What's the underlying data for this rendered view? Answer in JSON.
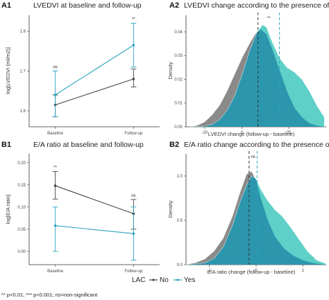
{
  "colors": {
    "no": "#444444",
    "yes": "#2aa3c0",
    "no_fill": "#8a8a88",
    "yes_fill": "#5fd0c8",
    "overlap_fill": "#2c96ad"
  },
  "panels": {
    "A1": {
      "label": "A1",
      "title": "LVEDVI at baseline and follow-up",
      "ylabel": "log[LVEDVI (ml/m2)]",
      "yticks": [
        "1.6",
        "1.7",
        "1.8"
      ],
      "xticks": [
        "Baseline",
        "Follow-up"
      ],
      "sig": [
        "ns",
        "**"
      ]
    },
    "A2": {
      "label": "A2",
      "title": "LVEDVI change according to the presence of LAC",
      "ylabel": "Density",
      "xlabel": "LVEDVI change (follow-up - baseline)",
      "yticks": [
        "0.00",
        "0.01",
        "0.02",
        "0.03",
        "0.04"
      ],
      "xticks": [
        "-20",
        "0",
        "25"
      ],
      "sig": "**"
    },
    "B1": {
      "label": "B1",
      "title": "E/A ratio at baseline and follow-up",
      "ylabel": "log[E/A ratio]",
      "yticks": [
        "0.00",
        "0.05",
        "0.10",
        "0.15",
        "0.20"
      ],
      "xticks": [
        "Baseline",
        "Follow-up"
      ],
      "sig": [
        "**",
        "ns"
      ]
    },
    "B2": {
      "label": "B2",
      "title": "E/A ratio change according to the presence of LAC",
      "ylabel": "Density",
      "xlabel": "E/A ratio change (follow-up - baseline)",
      "yticks": [
        "0.0",
        "0.5",
        "1.0"
      ],
      "xticks": [
        "-1",
        "0",
        "1"
      ],
      "sig": "ns"
    }
  },
  "legend": {
    "title": "LAC",
    "items": [
      "No",
      "Yes"
    ]
  },
  "footnote": "** p<0.01; *** p<0.001; ns=non-significant",
  "chart_data": [
    {
      "type": "line",
      "title": "LVEDVI at baseline and follow-up",
      "ylabel": "log[LVEDVI (ml/m2)]",
      "categories": [
        "Baseline",
        "Follow-up"
      ],
      "ylim": [
        1.56,
        1.84
      ],
      "series": [
        {
          "name": "No",
          "values": [
            1.615,
            1.68
          ],
          "ci_low": [
            1.585,
            1.66
          ],
          "ci_high": [
            1.64,
            1.705
          ]
        },
        {
          "name": "Yes",
          "values": [
            1.64,
            1.765
          ],
          "ci_low": [
            1.585,
            1.71
          ],
          "ci_high": [
            1.7,
            1.82
          ]
        }
      ],
      "annotations": [
        "ns",
        "**"
      ]
    },
    {
      "type": "area",
      "title": "LVEDVI change according to the presence of LAC",
      "xlabel": "LVEDVI change (follow-up - baseline)",
      "ylabel": "Density",
      "xlim": [
        -30,
        45
      ],
      "ylim": [
        0,
        0.047
      ],
      "series": [
        {
          "name": "No",
          "x": [
            -28,
            -24,
            -20,
            -16,
            -12,
            -8,
            -4,
            0,
            4,
            7,
            10,
            13,
            16,
            20,
            24,
            28,
            32,
            36,
            40,
            44
          ],
          "y": [
            0,
            0.0005,
            0.002,
            0.005,
            0.009,
            0.015,
            0.022,
            0.029,
            0.035,
            0.039,
            0.041,
            0.039,
            0.033,
            0.024,
            0.015,
            0.008,
            0.004,
            0.0015,
            0.0005,
            0
          ]
        },
        {
          "name": "Yes",
          "x": [
            -28,
            -20,
            -16,
            -12,
            -8,
            -4,
            0,
            4,
            8,
            11,
            13,
            16,
            20,
            24,
            28,
            32,
            36,
            40,
            44
          ],
          "y": [
            0,
            0.0003,
            0.001,
            0.003,
            0.007,
            0.013,
            0.022,
            0.032,
            0.04,
            0.043,
            0.042,
            0.036,
            0.029,
            0.025,
            0.023,
            0.02,
            0.015,
            0.009,
            0.004
          ]
        }
      ],
      "means": {
        "No": 8.5,
        "Yes": 20
      },
      "annotations": [
        "**"
      ]
    },
    {
      "type": "line",
      "title": "E/A ratio at baseline and follow-up",
      "ylabel": "log[E/A ratio]",
      "categories": [
        "Baseline",
        "Follow-up"
      ],
      "ylim": [
        -0.03,
        0.22
      ],
      "series": [
        {
          "name": "No",
          "values": [
            0.148,
            0.085
          ],
          "ci_low": [
            0.118,
            0.05
          ],
          "ci_high": [
            0.18,
            0.117
          ]
        },
        {
          "name": "Yes",
          "values": [
            0.058,
            0.04
          ],
          "ci_low": [
            0.0,
            -0.02
          ],
          "ci_high": [
            0.1,
            0.1
          ]
        }
      ],
      "annotations": [
        "**",
        "ns"
      ]
    },
    {
      "type": "area",
      "title": "E/A ratio change according to the presence of LAC",
      "xlabel": "E/A ratio change (follow-up - baseline)",
      "ylabel": "Density",
      "xlim": [
        -1.5,
        1.5
      ],
      "ylim": [
        0,
        1.25
      ],
      "series": [
        {
          "name": "No",
          "x": [
            -1.5,
            -1.3,
            -1.1,
            -0.9,
            -0.7,
            -0.5,
            -0.35,
            -0.2,
            -0.1,
            0.0,
            0.1,
            0.25,
            0.4,
            0.6,
            0.8,
            1.0,
            1.2,
            1.4,
            1.5
          ],
          "y": [
            0,
            0.02,
            0.06,
            0.15,
            0.3,
            0.55,
            0.8,
            1.02,
            1.05,
            0.95,
            0.75,
            0.5,
            0.32,
            0.18,
            0.1,
            0.05,
            0.02,
            0.005,
            0
          ]
        },
        {
          "name": "Yes",
          "x": [
            -1.5,
            -1.1,
            -0.9,
            -0.7,
            -0.5,
            -0.35,
            -0.2,
            -0.1,
            0.0,
            0.1,
            0.25,
            0.4,
            0.55,
            0.7,
            0.9,
            1.1,
            1.3,
            1.5
          ],
          "y": [
            0,
            0.02,
            0.07,
            0.2,
            0.45,
            0.7,
            0.9,
            1.0,
            0.97,
            0.85,
            0.72,
            0.62,
            0.55,
            0.45,
            0.3,
            0.15,
            0.05,
            0.01
          ]
        }
      ],
      "means": {
        "No": -0.15,
        "Yes": 0.02
      },
      "annotations": [
        "ns"
      ]
    }
  ]
}
